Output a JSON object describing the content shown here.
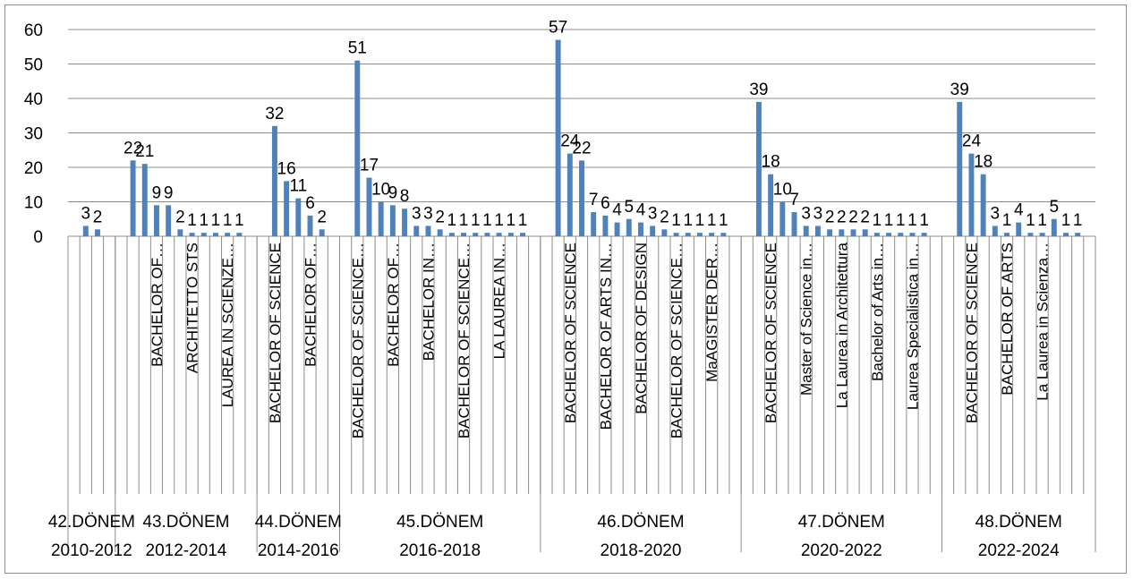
{
  "chart_data": {
    "type": "bar",
    "ylim": [
      0,
      60
    ],
    "yticks": [
      0,
      10,
      20,
      30,
      40,
      50,
      60
    ],
    "grid": true,
    "legend": "none",
    "bar_color": "#4f81bd",
    "groups": [
      {
        "line1": "42.DÖNEM",
        "line2": "2010-2012",
        "bars": [
          {
            "value": 3,
            "label": "3",
            "category": ""
          },
          {
            "value": 2,
            "label": "2",
            "category": ""
          }
        ]
      },
      {
        "line1": "43.DÖNEM",
        "line2": "2012-2014",
        "bars": [
          {
            "value": 22,
            "label": "22",
            "category": ""
          },
          {
            "value": 21,
            "label": "21",
            "category": ""
          },
          {
            "value": 9,
            "label": "9",
            "category": "BACHELOR OF…"
          },
          {
            "value": 9,
            "label": "9",
            "category": ""
          },
          {
            "value": 2,
            "label": "2",
            "category": ""
          },
          {
            "value": 1,
            "label": "1",
            "category": "ARCHITETTO STS"
          },
          {
            "value": 1,
            "label": "1",
            "category": ""
          },
          {
            "value": 1,
            "label": "1",
            "category": ""
          },
          {
            "value": 1,
            "label": "1",
            "category": "LAUREA IN SCIENZE…"
          },
          {
            "value": 1,
            "label": "1",
            "category": ""
          }
        ]
      },
      {
        "line1": "44.DÖNEM",
        "line2": "2014-2016",
        "bars": [
          {
            "value": 32,
            "label": "32",
            "category": "BACHELOR OF SCIENCE"
          },
          {
            "value": 16,
            "label": "16",
            "category": ""
          },
          {
            "value": 11,
            "label": "11",
            "category": ""
          },
          {
            "value": 6,
            "label": "6",
            "category": "BACHELOR OF…"
          },
          {
            "value": 2,
            "label": "2",
            "category": ""
          }
        ]
      },
      {
        "line1": "45.DÖNEM",
        "line2": "2016-2018",
        "bars": [
          {
            "value": 51,
            "label": "51",
            "category": "BACHELOR OF SCIENCE…"
          },
          {
            "value": 17,
            "label": "17",
            "category": ""
          },
          {
            "value": 10,
            "label": "10",
            "category": ""
          },
          {
            "value": 9,
            "label": "9",
            "category": "BACHELOR OF…"
          },
          {
            "value": 8,
            "label": "8",
            "category": ""
          },
          {
            "value": 3,
            "label": "3",
            "category": ""
          },
          {
            "value": 3,
            "label": "3",
            "category": "BACHELOR IN…"
          },
          {
            "value": 2,
            "label": "2",
            "category": ""
          },
          {
            "value": 1,
            "label": "1",
            "category": ""
          },
          {
            "value": 1,
            "label": "1",
            "category": "BACHELOR OF SCIENCE…"
          },
          {
            "value": 1,
            "label": "1",
            "category": ""
          },
          {
            "value": 1,
            "label": "1",
            "category": ""
          },
          {
            "value": 1,
            "label": "1",
            "category": "LA LAUREA IN…"
          },
          {
            "value": 1,
            "label": "1",
            "category": ""
          },
          {
            "value": 1,
            "label": "1",
            "category": ""
          }
        ]
      },
      {
        "line1": "46.DÖNEM",
        "line2": "2018-2020",
        "bars": [
          {
            "value": 57,
            "label": "57",
            "category": ""
          },
          {
            "value": 24,
            "label": "24",
            "category": "BACHELOR OF SCIENCE"
          },
          {
            "value": 22,
            "label": "22",
            "category": ""
          },
          {
            "value": 7,
            "label": "7",
            "category": ""
          },
          {
            "value": 6,
            "label": "6",
            "category": "BACHELOR OF ARTS IN…"
          },
          {
            "value": 4,
            "label": "4",
            "category": ""
          },
          {
            "value": 5,
            "label": "5",
            "category": ""
          },
          {
            "value": 4,
            "label": "4",
            "category": "BACHELOR OF DESIGN"
          },
          {
            "value": 3,
            "label": "3",
            "category": ""
          },
          {
            "value": 2,
            "label": "2",
            "category": ""
          },
          {
            "value": 1,
            "label": "1",
            "category": "BACHELOR OF SCIENCE…"
          },
          {
            "value": 1,
            "label": "1",
            "category": ""
          },
          {
            "value": 1,
            "label": "1",
            "category": ""
          },
          {
            "value": 1,
            "label": "1",
            "category": "MaAGISTER DER…"
          },
          {
            "value": 1,
            "label": "1",
            "category": ""
          }
        ]
      },
      {
        "line1": "47.DÖNEM",
        "line2": "2020-2022",
        "bars": [
          {
            "value": 39,
            "label": "39",
            "category": ""
          },
          {
            "value": 18,
            "label": "18",
            "category": "BACHELOR OF SCIENCE"
          },
          {
            "value": 10,
            "label": "10",
            "category": ""
          },
          {
            "value": 7,
            "label": "7",
            "category": ""
          },
          {
            "value": 3,
            "label": "3",
            "category": "Master of Science in…"
          },
          {
            "value": 3,
            "label": "3",
            "category": ""
          },
          {
            "value": 2,
            "label": "2",
            "category": ""
          },
          {
            "value": 2,
            "label": "2",
            "category": "La Laurea in Architettura"
          },
          {
            "value": 2,
            "label": "2",
            "category": ""
          },
          {
            "value": 2,
            "label": "2",
            "category": ""
          },
          {
            "value": 1,
            "label": "1",
            "category": "Bachelor of Arts in…"
          },
          {
            "value": 1,
            "label": "1",
            "category": ""
          },
          {
            "value": 1,
            "label": "1",
            "category": ""
          },
          {
            "value": 1,
            "label": "1",
            "category": "Laurea Specialistica in…"
          },
          {
            "value": 1,
            "label": "1",
            "category": ""
          }
        ]
      },
      {
        "line1": "48.DÖNEM",
        "line2": "2022-2024",
        "bars": [
          {
            "value": 39,
            "label": "39",
            "category": ""
          },
          {
            "value": 24,
            "label": "24",
            "category": "BACHELOR OF SCIENCE"
          },
          {
            "value": 18,
            "label": "18",
            "category": ""
          },
          {
            "value": 3,
            "label": "3",
            "category": ""
          },
          {
            "value": 1,
            "label": "1",
            "category": "BACHELOR OF ARTS"
          },
          {
            "value": 4,
            "label": "4",
            "category": ""
          },
          {
            "value": 1,
            "label": "1",
            "category": ""
          },
          {
            "value": 1,
            "label": "1",
            "category": "La Laurea in Scienza…"
          },
          {
            "value": 5,
            "label": "5",
            "category": ""
          },
          {
            "value": 1,
            "label": "1",
            "category": ""
          },
          {
            "value": 1,
            "label": "1",
            "category": ""
          }
        ]
      }
    ]
  }
}
